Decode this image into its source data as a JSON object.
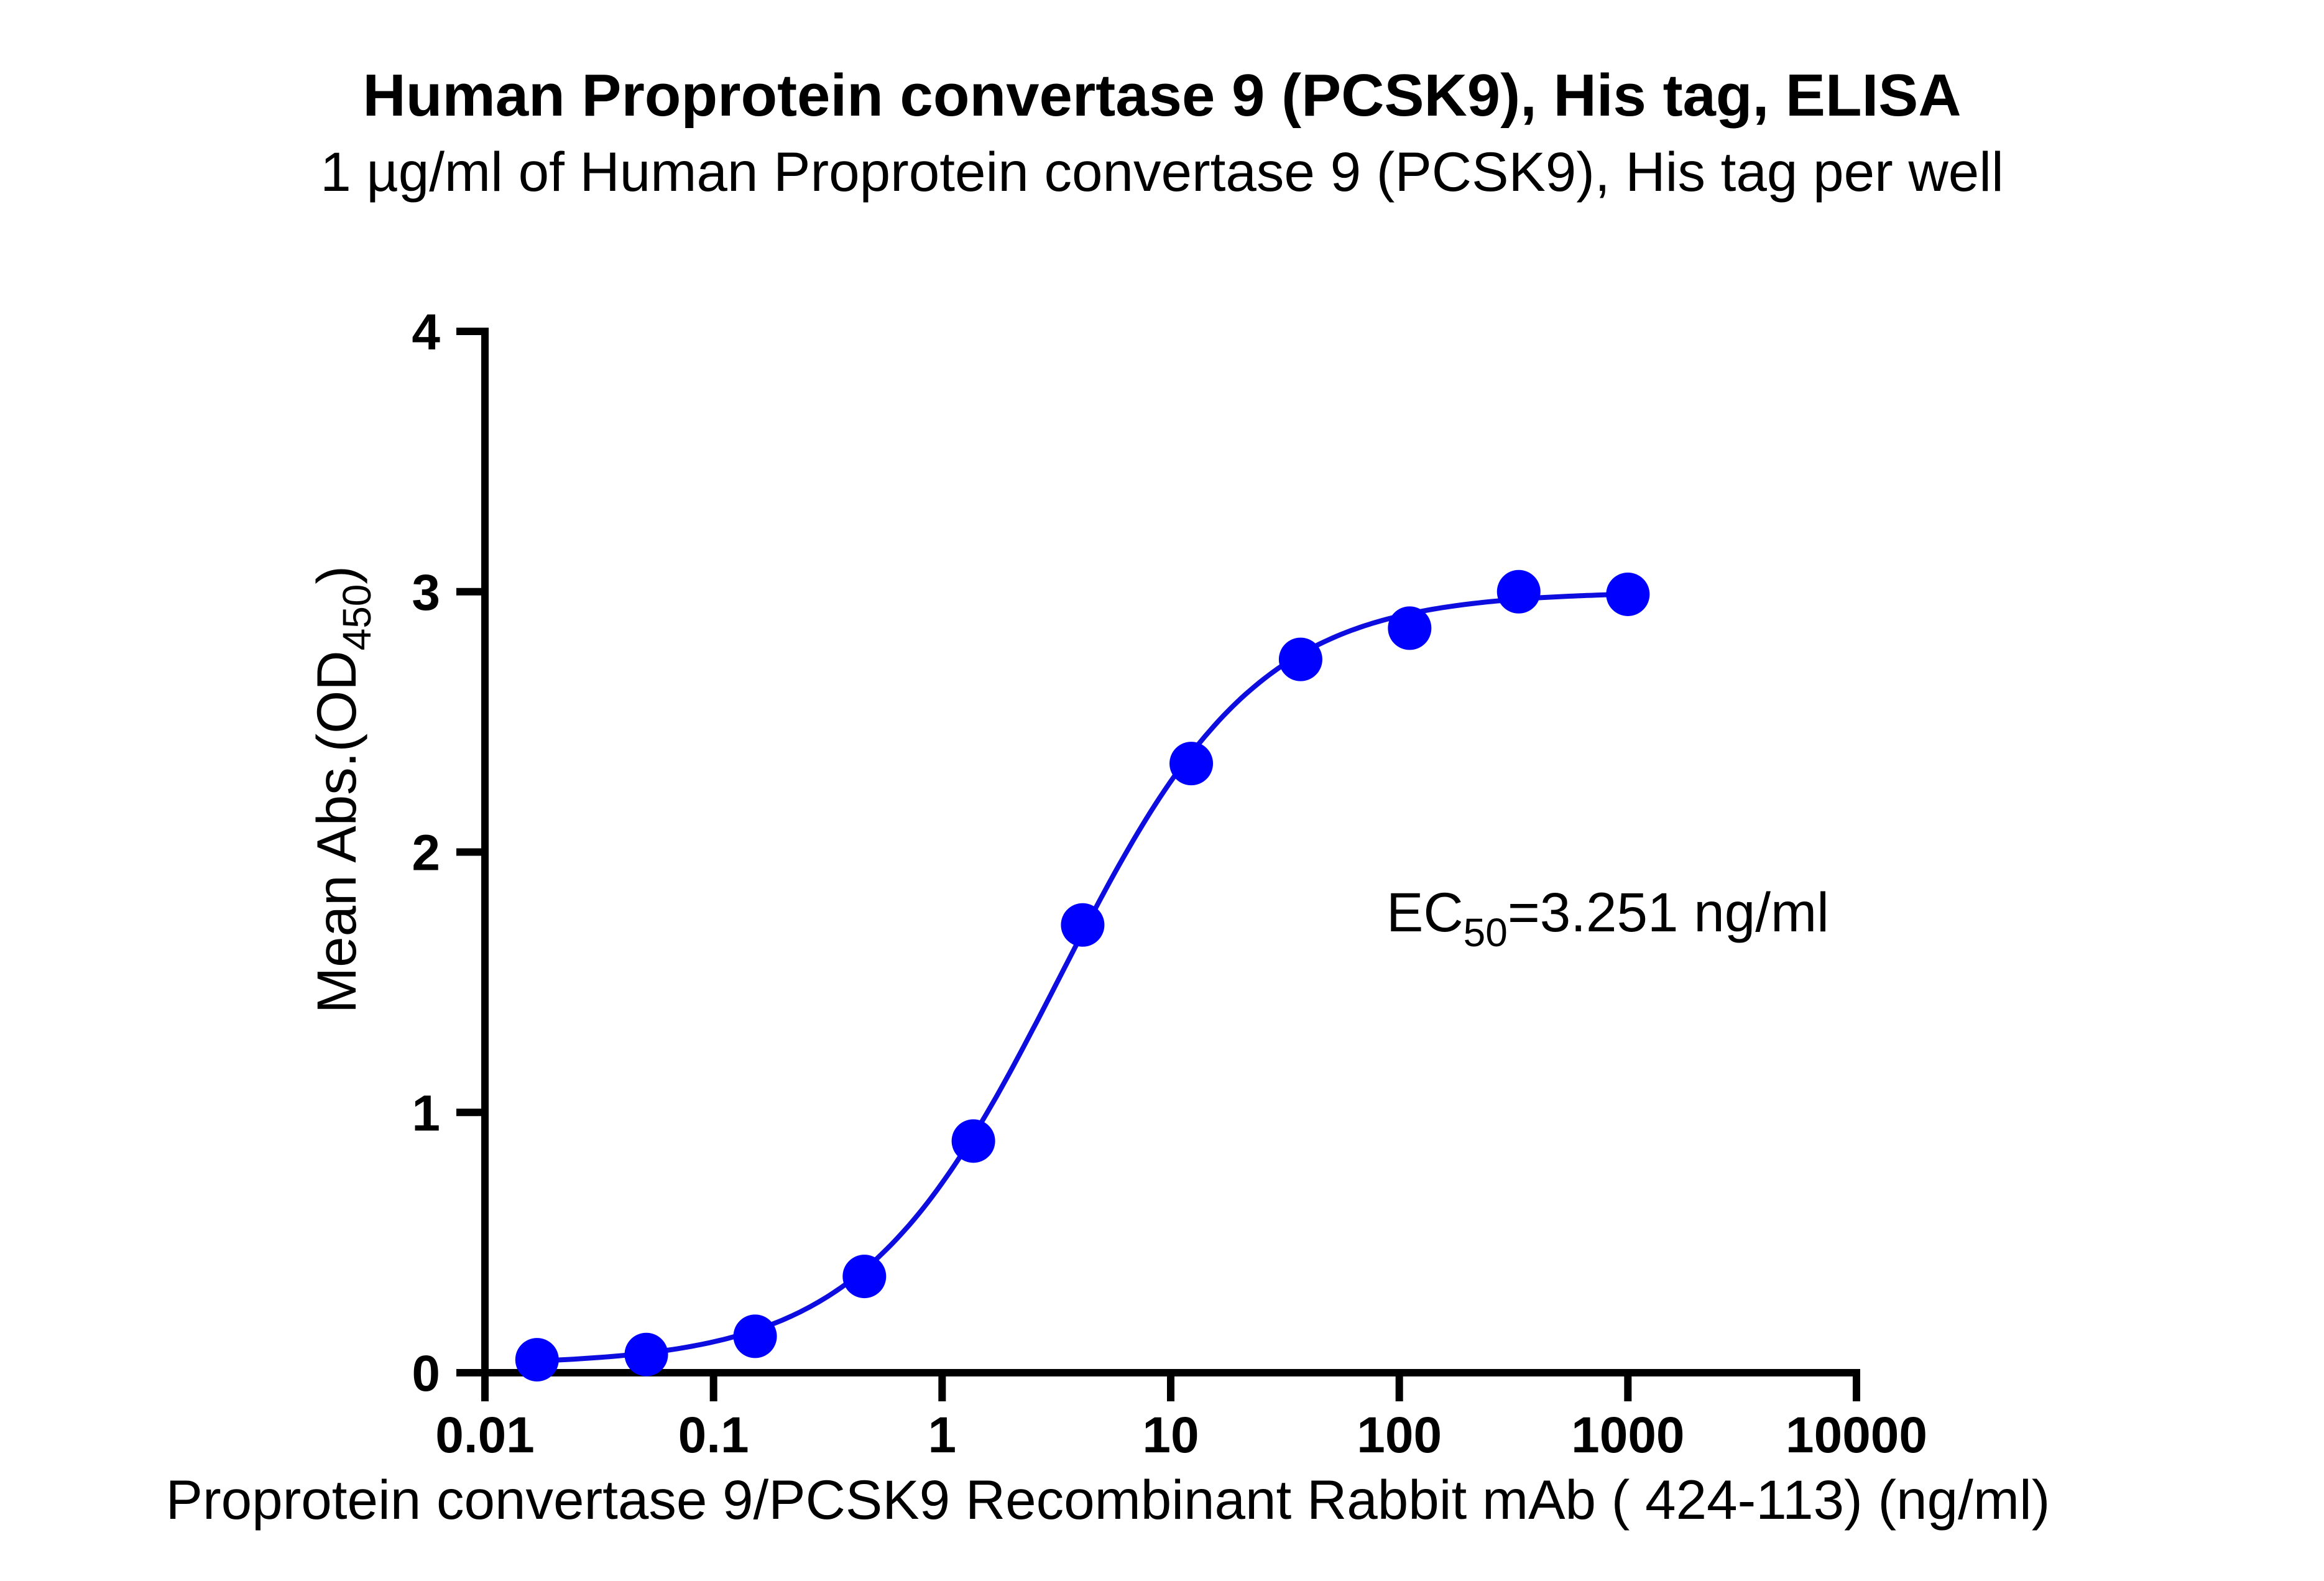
{
  "chart_data": {
    "type": "scatter",
    "title": "Human Proprotein convertase 9 (PCSK9), His tag, ELISA",
    "subtitle": "1 µg/ml of Human Proprotein convertase 9 (PCSK9), His tag per well",
    "xlabel": "Proprotein convertase 9/PCSK9 Recombinant Rabbit mAb ( 424-113) (ng/ml)",
    "ylabel": {
      "main": "Mean Abs.(OD",
      "sub": "450",
      "end": ")"
    },
    "x_scale": "log",
    "xlim": [
      0.01,
      10000
    ],
    "ylim": [
      0,
      4
    ],
    "x_ticks": [
      "0.01",
      "0.1",
      "1",
      "10",
      "100",
      "1000",
      "10000"
    ],
    "x_tick_values": [
      0.01,
      0.1,
      1,
      10,
      100,
      1000,
      10000
    ],
    "y_ticks": [
      "0",
      "1",
      "2",
      "3",
      "4"
    ],
    "y_tick_values": [
      0,
      1,
      2,
      3,
      4
    ],
    "grid": false,
    "series": [
      {
        "color": "#0000ff",
        "x": [
          0.0169,
          0.0508,
          0.152,
          0.457,
          1.37,
          4.12,
          12.3,
          37.0,
          111,
          333,
          1000
        ],
        "y": [
          0.05,
          0.07,
          0.14,
          0.37,
          0.89,
          1.72,
          2.34,
          2.74,
          2.86,
          3.0,
          2.99
        ]
      }
    ],
    "fit_curve": {
      "type": "4PL",
      "bottom": 0.03,
      "top": 3.0,
      "ec50": 3.251,
      "hill": 1.0,
      "color": "#0d0de0"
    },
    "annotation": {
      "prefix": "EC",
      "sub": "50",
      "suffix": "=3.251 ng/ml"
    }
  }
}
